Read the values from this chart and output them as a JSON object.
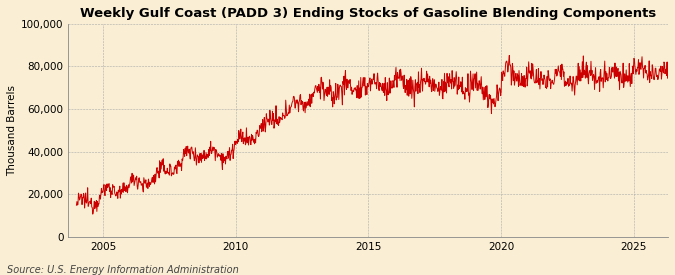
{
  "title": "Weekly Gulf Coast (PADD 3) Ending Stocks of Gasoline Blending Components",
  "ylabel": "Thousand Barrels",
  "source": "Source: U.S. Energy Information Administration",
  "line_color": "#cc0000",
  "background_color": "#faefd4",
  "plot_bg_color": "#faefd4",
  "grid_color": "#aaaaaa",
  "xlim_start": 2003.7,
  "xlim_end": 2026.3,
  "ylim": [
    0,
    100000
  ],
  "yticks": [
    0,
    20000,
    40000,
    60000,
    80000,
    100000
  ],
  "ytick_labels": [
    "0",
    "20,000",
    "40,000",
    "60,000",
    "80,000",
    "100,000"
  ],
  "xticks": [
    2005,
    2010,
    2015,
    2020,
    2025
  ],
  "title_fontsize": 9.5,
  "axis_fontsize": 7.5,
  "source_fontsize": 7.0,
  "line_width": 0.7
}
